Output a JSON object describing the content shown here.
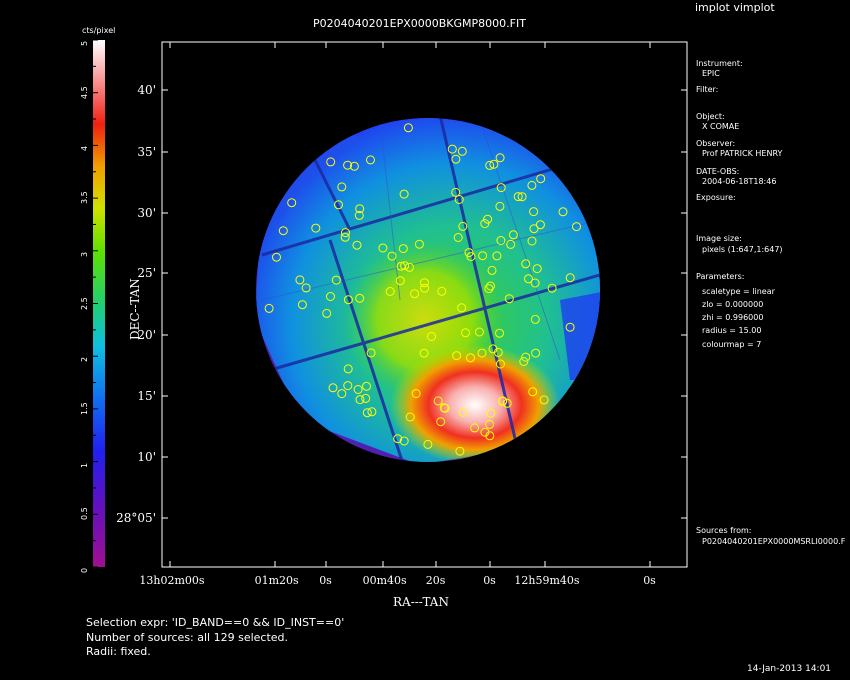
{
  "window": {
    "title": "implot vimplot"
  },
  "plot": {
    "title": "P0204040201EPX0000BKGMP8000.FIT",
    "xlabel": "RA---TAN",
    "ylabel": "DEC--TAN",
    "colorbar_label": "cts/pixel",
    "colorbar_ticks": [
      "0",
      "0.5",
      "1",
      "1.5",
      "2",
      "2.5",
      "3",
      "3.5",
      "4",
      "4.5",
      "5"
    ],
    "dec_ticks": [
      "40'",
      "35'",
      "30'",
      "25'",
      "20'",
      "15'",
      "10'",
      "28°05'"
    ],
    "ra_ticks": [
      "13h02m00s",
      "01m20s",
      "0s",
      "00m40s",
      "20s",
      "0s",
      "12h59m40s",
      "0s"
    ],
    "source_count": 129,
    "markers_color": "#ffff00"
  },
  "info": {
    "instrument_label": "Instrument:",
    "instrument_value": "EPIC",
    "filter_label": "Filter:",
    "object_label": "Object:",
    "object_value": "X COMAE",
    "observer_label": "Observer:",
    "observer_value": "Prof PATRICK HENRY",
    "date_label": "DATE-OBS:",
    "date_value": "2004-06-18T18:46",
    "exposure_label": "Exposure:",
    "imagesize_label": "Image size:",
    "imagesize_value": "pixels (1:647,1:647)",
    "parameters_label": "Parameters:",
    "param_scaletype": "scaletype = linear",
    "param_zlo": "zlo = 0.000000",
    "param_zhi": "zhi = 0.996000",
    "param_radius": "radius = 15.00",
    "param_colourmap": "colourmap = 7",
    "sources_label": "Sources from:",
    "sources_value": "P0204040201EPX0000MSRLI0000.F"
  },
  "footer": {
    "selection": "Selection expr: 'ID_BAND==0 && ID_INST==0'",
    "number": "Number of sources: all 129 selected.",
    "radii": "Radii: fixed.",
    "timestamp": "14-Jan-2013 14:01"
  }
}
